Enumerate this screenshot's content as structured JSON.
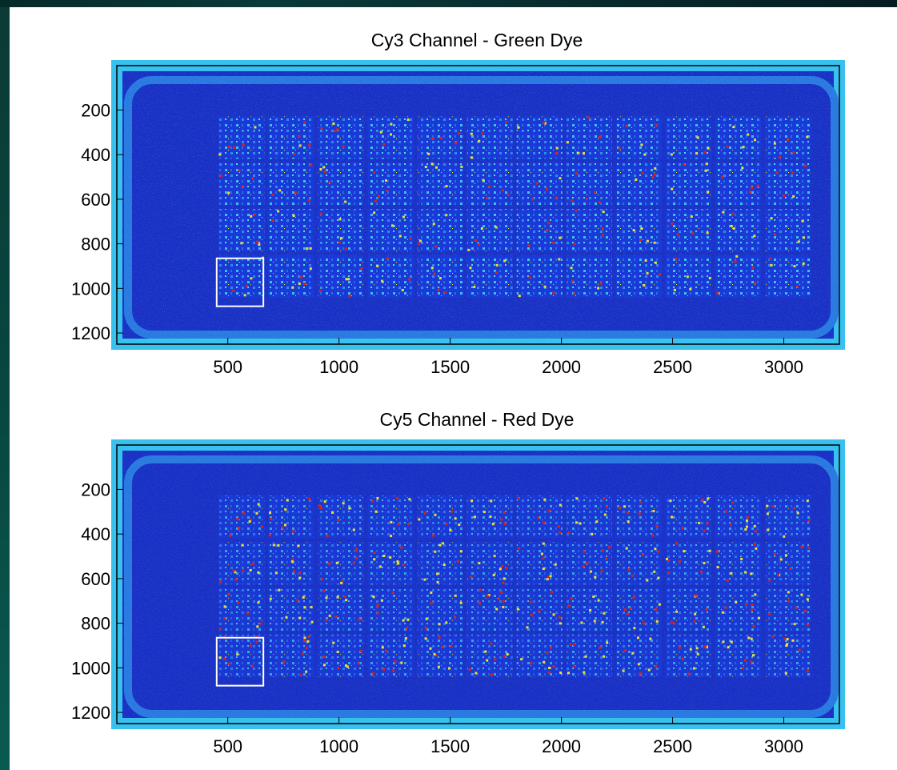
{
  "chart_data": [
    {
      "type": "heatmap",
      "title": "Cy3 Channel - Green Dye",
      "xlim": [
        1,
        3250
      ],
      "ylim": [
        1250,
        1
      ],
      "x_ticks": [
        500,
        1000,
        1500,
        2000,
        2500,
        3000
      ],
      "y_ticks": [
        200,
        400,
        600,
        800,
        1000,
        1200
      ],
      "grid": false,
      "colormap": "jet",
      "array_blocks": {
        "columns": 12,
        "rows": 4,
        "x_start": 450,
        "x_end": 3130,
        "y_start": 220,
        "y_end": 1050
      },
      "highlight_box": {
        "x": [
          450,
          660
        ],
        "y": [
          865,
          1080
        ]
      }
    },
    {
      "type": "heatmap",
      "title": "Cy5 Channel - Red Dye",
      "xlim": [
        1,
        3250
      ],
      "ylim": [
        1250,
        1
      ],
      "x_ticks": [
        500,
        1000,
        1500,
        2000,
        2500,
        3000
      ],
      "y_ticks": [
        200,
        400,
        600,
        800,
        1000,
        1200
      ],
      "grid": false,
      "colormap": "jet",
      "array_blocks": {
        "columns": 12,
        "rows": 4,
        "x_start": 450,
        "x_end": 3130,
        "y_start": 220,
        "y_end": 1050
      },
      "highlight_box": {
        "x": [
          450,
          660
        ],
        "y": [
          865,
          1080
        ]
      }
    }
  ],
  "colors": {
    "background": "#1530c8",
    "border_glow": "#3cc8f0",
    "hot_spot": "#e02010",
    "warm_spot": "#f0e030",
    "highlight_box": "#ffffff"
  }
}
